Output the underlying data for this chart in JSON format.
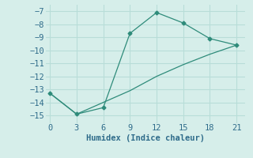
{
  "line1_x": [
    0,
    3,
    6,
    9,
    12,
    15,
    18,
    21
  ],
  "line1_y": [
    -13.3,
    -14.9,
    -14.4,
    -8.7,
    -7.1,
    -7.9,
    -9.1,
    -9.6
  ],
  "line2_x": [
    0,
    3,
    6,
    9,
    12,
    15,
    18,
    21
  ],
  "line2_y": [
    -13.3,
    -14.9,
    -14.0,
    -13.1,
    -12.0,
    -11.1,
    -10.3,
    -9.6
  ],
  "line_color": "#2e8b7a",
  "xlabel": "Humidex (Indice chaleur)",
  "xlim": [
    -0.5,
    22
  ],
  "ylim": [
    -15.6,
    -6.5
  ],
  "xticks": [
    0,
    3,
    6,
    9,
    12,
    15,
    18,
    21
  ],
  "yticks": [
    -7,
    -8,
    -9,
    -10,
    -11,
    -12,
    -13,
    -14,
    -15
  ],
  "bg_color": "#d6eeea",
  "grid_color": "#b8ddd8",
  "font_color": "#2e6b8a",
  "xlabel_fontsize": 7.5,
  "tick_fontsize": 7.5
}
